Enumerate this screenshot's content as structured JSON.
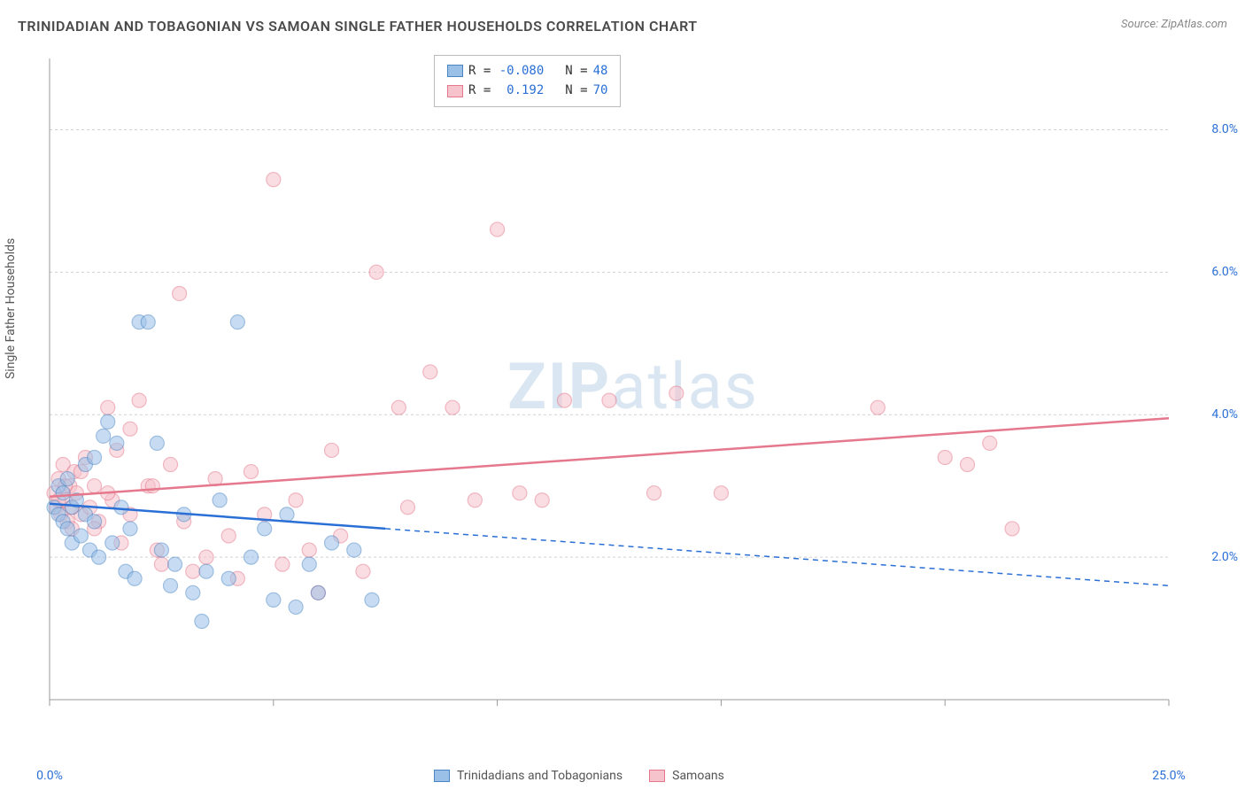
{
  "title": "TRINIDADIAN AND TOBAGONIAN VS SAMOAN SINGLE FATHER HOUSEHOLDS CORRELATION CHART",
  "source": "Source: ZipAtlas.com",
  "y_axis_label": "Single Father Households",
  "watermark": {
    "bold": "ZIP",
    "light": "atlas"
  },
  "chart": {
    "type": "scatter",
    "xlim": [
      0,
      25
    ],
    "ylim": [
      0,
      9
    ],
    "x_ticks_minor": [
      0,
      5,
      10,
      15,
      20,
      25
    ],
    "x_tick_labels": [
      {
        "pos": 0,
        "label": "0.0%"
      },
      {
        "pos": 25,
        "label": "25.0%"
      }
    ],
    "y_tick_labels": [
      {
        "pos": 2,
        "label": "2.0%"
      },
      {
        "pos": 4,
        "label": "4.0%"
      },
      {
        "pos": 6,
        "label": "6.0%"
      },
      {
        "pos": 8,
        "label": "8.0%"
      }
    ],
    "grid_color": "#d0d0d0",
    "axis_color": "#999",
    "background_color": "#ffffff",
    "marker_radius": 8,
    "marker_opacity": 0.55,
    "series": [
      {
        "name": "Trinidadians and Tobagonians",
        "fill": "#9ac0e8",
        "stroke": "#4a86c5",
        "line_color": "#2a6fd6",
        "r": "-0.080",
        "n": "48",
        "trend": {
          "x1": 0,
          "y1": 2.75,
          "x2": 7.5,
          "y2": 2.4,
          "x2_dash": 25,
          "y2_dash": 1.6
        },
        "points": [
          [
            0.1,
            2.7
          ],
          [
            0.2,
            2.6
          ],
          [
            0.2,
            3.0
          ],
          [
            0.3,
            2.5
          ],
          [
            0.3,
            2.9
          ],
          [
            0.4,
            2.4
          ],
          [
            0.4,
            3.1
          ],
          [
            0.5,
            2.7
          ],
          [
            0.5,
            2.2
          ],
          [
            0.6,
            2.8
          ],
          [
            0.7,
            2.3
          ],
          [
            0.8,
            3.3
          ],
          [
            0.8,
            2.6
          ],
          [
            0.9,
            2.1
          ],
          [
            1.0,
            3.4
          ],
          [
            1.0,
            2.5
          ],
          [
            1.1,
            2.0
          ],
          [
            1.2,
            3.7
          ],
          [
            1.3,
            3.9
          ],
          [
            1.4,
            2.2
          ],
          [
            1.5,
            3.6
          ],
          [
            1.6,
            2.7
          ],
          [
            1.7,
            1.8
          ],
          [
            1.8,
            2.4
          ],
          [
            1.9,
            1.7
          ],
          [
            2.0,
            5.3
          ],
          [
            2.2,
            5.3
          ],
          [
            2.4,
            3.6
          ],
          [
            2.5,
            2.1
          ],
          [
            2.7,
            1.6
          ],
          [
            2.8,
            1.9
          ],
          [
            3.0,
            2.6
          ],
          [
            3.2,
            1.5
          ],
          [
            3.4,
            1.1
          ],
          [
            3.5,
            1.8
          ],
          [
            3.8,
            2.8
          ],
          [
            4.0,
            1.7
          ],
          [
            4.2,
            5.3
          ],
          [
            4.5,
            2.0
          ],
          [
            4.8,
            2.4
          ],
          [
            5.0,
            1.4
          ],
          [
            5.3,
            2.6
          ],
          [
            5.5,
            1.3
          ],
          [
            5.8,
            1.9
          ],
          [
            6.0,
            1.5
          ],
          [
            6.3,
            2.2
          ],
          [
            6.8,
            2.1
          ],
          [
            7.2,
            1.4
          ]
        ]
      },
      {
        "name": "Samoans",
        "fill": "#f6c2cb",
        "stroke": "#e5788c",
        "line_color": "#e5788c",
        "r": "0.192",
        "n": "70",
        "trend": {
          "x1": 0,
          "y1": 2.85,
          "x2": 25,
          "y2": 3.95
        },
        "points": [
          [
            0.1,
            2.9
          ],
          [
            0.15,
            2.7
          ],
          [
            0.2,
            3.1
          ],
          [
            0.25,
            2.6
          ],
          [
            0.3,
            3.3
          ],
          [
            0.35,
            2.8
          ],
          [
            0.4,
            2.5
          ],
          [
            0.45,
            3.0
          ],
          [
            0.5,
            2.4
          ],
          [
            0.55,
            3.2
          ],
          [
            0.6,
            2.9
          ],
          [
            0.7,
            2.6
          ],
          [
            0.8,
            3.4
          ],
          [
            0.9,
            2.7
          ],
          [
            1.0,
            3.0
          ],
          [
            1.1,
            2.5
          ],
          [
            1.3,
            4.1
          ],
          [
            1.4,
            2.8
          ],
          [
            1.5,
            3.5
          ],
          [
            1.6,
            2.2
          ],
          [
            1.8,
            3.8
          ],
          [
            2.0,
            4.2
          ],
          [
            2.2,
            3.0
          ],
          [
            2.4,
            2.1
          ],
          [
            2.5,
            1.9
          ],
          [
            2.7,
            3.3
          ],
          [
            2.9,
            5.7
          ],
          [
            3.0,
            2.5
          ],
          [
            3.2,
            1.8
          ],
          [
            3.5,
            2.0
          ],
          [
            3.7,
            3.1
          ],
          [
            4.0,
            2.3
          ],
          [
            4.2,
            1.7
          ],
          [
            4.5,
            3.2
          ],
          [
            4.8,
            2.6
          ],
          [
            5.0,
            7.3
          ],
          [
            5.2,
            1.9
          ],
          [
            5.5,
            2.8
          ],
          [
            5.8,
            2.1
          ],
          [
            6.0,
            1.5
          ],
          [
            6.3,
            3.5
          ],
          [
            6.5,
            2.3
          ],
          [
            7.0,
            1.8
          ],
          [
            7.3,
            6.0
          ],
          [
            7.8,
            4.1
          ],
          [
            8.0,
            2.7
          ],
          [
            8.5,
            4.6
          ],
          [
            9.0,
            4.1
          ],
          [
            9.5,
            2.8
          ],
          [
            10.0,
            6.6
          ],
          [
            10.5,
            2.9
          ],
          [
            11.0,
            2.8
          ],
          [
            11.5,
            4.2
          ],
          [
            12.5,
            4.2
          ],
          [
            13.5,
            2.9
          ],
          [
            14.0,
            4.3
          ],
          [
            15.0,
            2.9
          ],
          [
            18.5,
            4.1
          ],
          [
            20.0,
            3.4
          ],
          [
            20.5,
            3.3
          ],
          [
            21.0,
            3.6
          ],
          [
            21.5,
            2.4
          ],
          [
            0.2,
            2.8
          ],
          [
            0.35,
            3.0
          ],
          [
            0.5,
            2.7
          ],
          [
            0.7,
            3.2
          ],
          [
            1.0,
            2.4
          ],
          [
            1.3,
            2.9
          ],
          [
            1.8,
            2.6
          ],
          [
            2.3,
            3.0
          ]
        ]
      }
    ]
  },
  "legend_bottom": [
    {
      "label": "Trinidadians and Tobagonians",
      "fill": "#9ac0e8",
      "stroke": "#4a86c5"
    },
    {
      "label": "Samoans",
      "fill": "#f6c2cb",
      "stroke": "#e5788c"
    }
  ]
}
